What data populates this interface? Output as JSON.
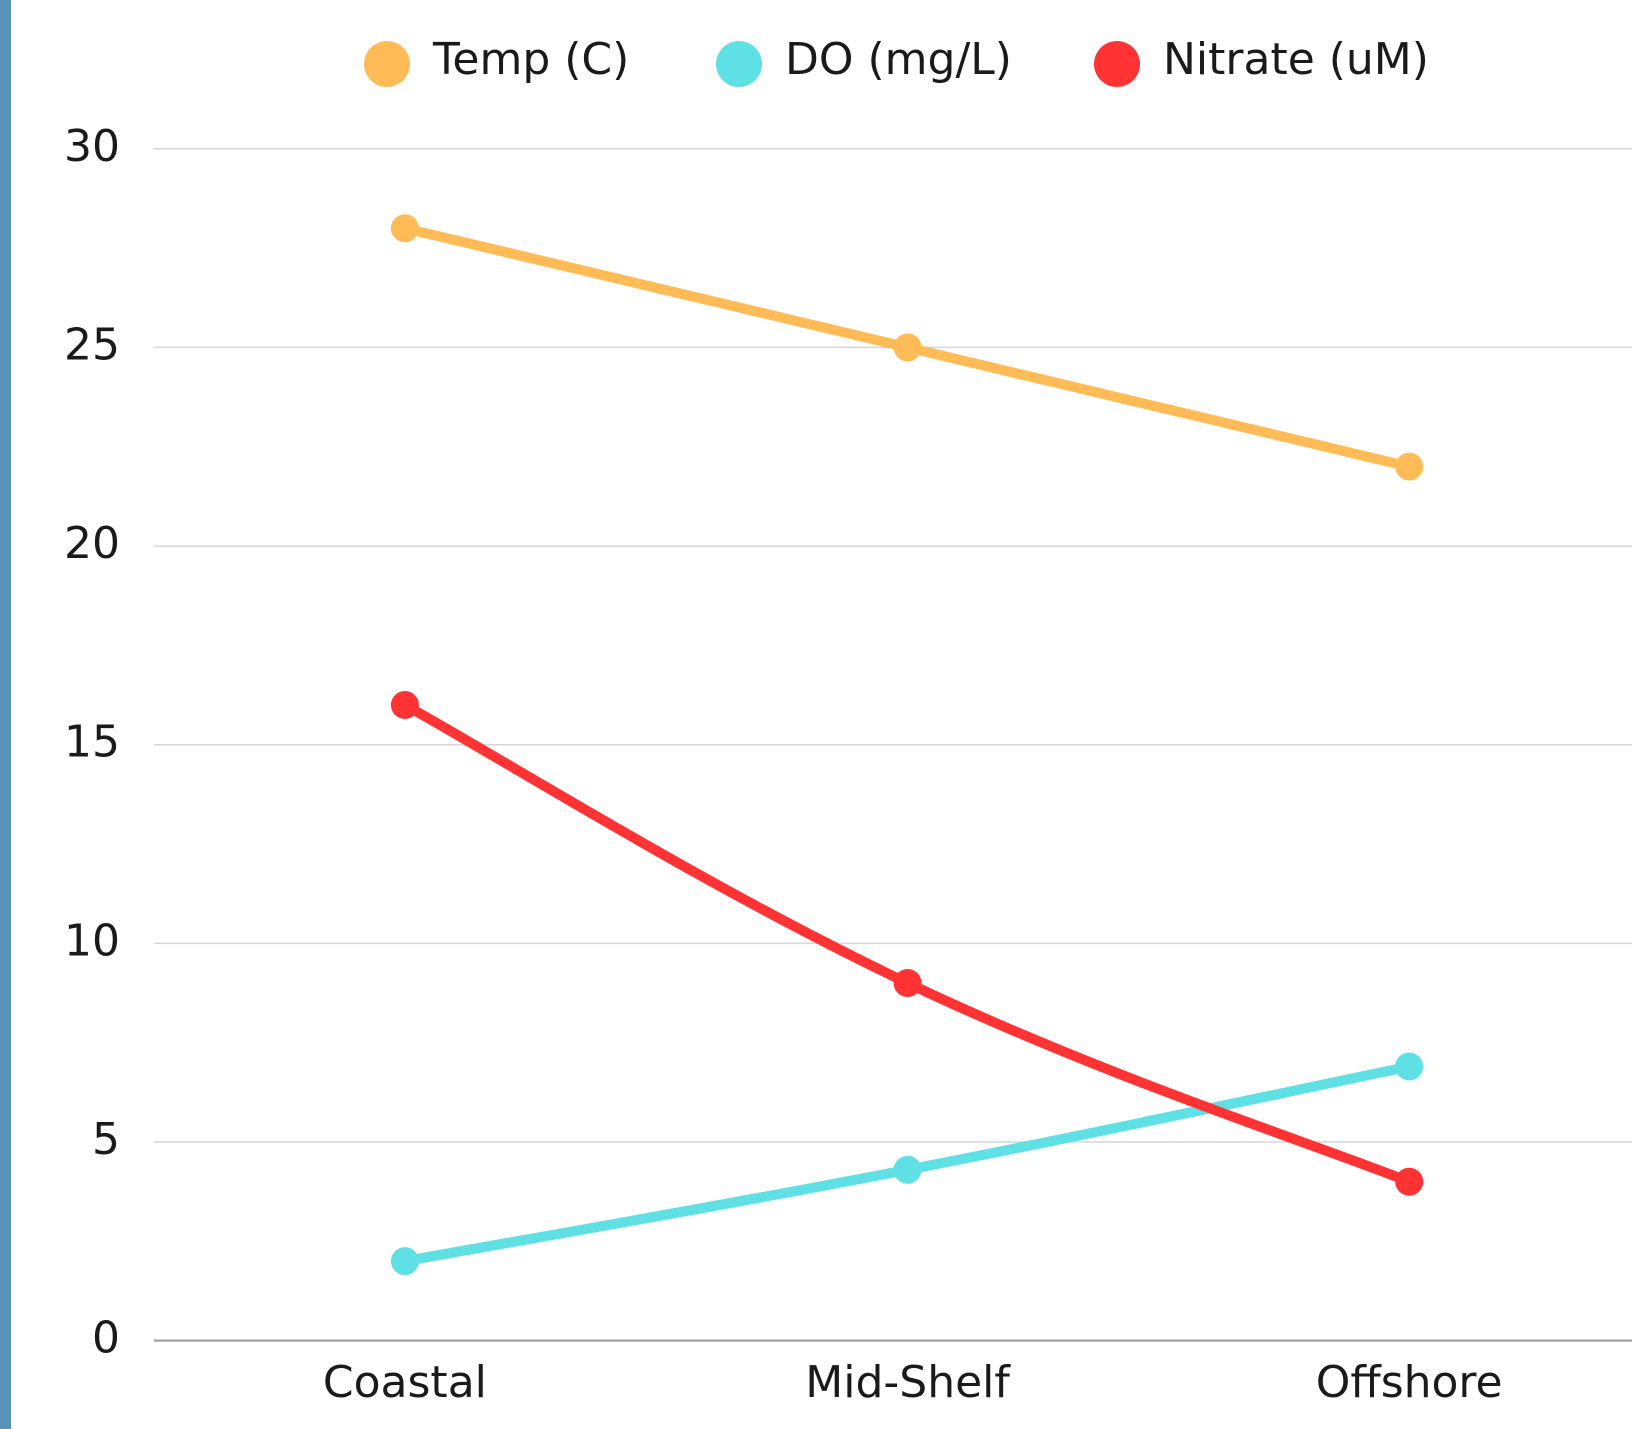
{
  "chart_data": {
    "type": "line",
    "categories": [
      "Coastal",
      "Mid-Shelf",
      "Offshore"
    ],
    "series": [
      {
        "name": "Temp (C)",
        "color": "#ffbb55",
        "values": [
          28,
          25,
          22
        ]
      },
      {
        "name": "DO (mg/L)",
        "color": "#5ee0e4",
        "values": [
          2,
          4.3,
          6.9
        ]
      },
      {
        "name": "Nitrate (uM)",
        "color": "#ff3333",
        "values": [
          16,
          9,
          4
        ]
      }
    ],
    "ylim": [
      0,
      30
    ],
    "yticks": [
      0,
      5,
      10,
      15,
      20,
      25,
      30
    ],
    "grid": true,
    "legend": "top",
    "smooth": true
  }
}
